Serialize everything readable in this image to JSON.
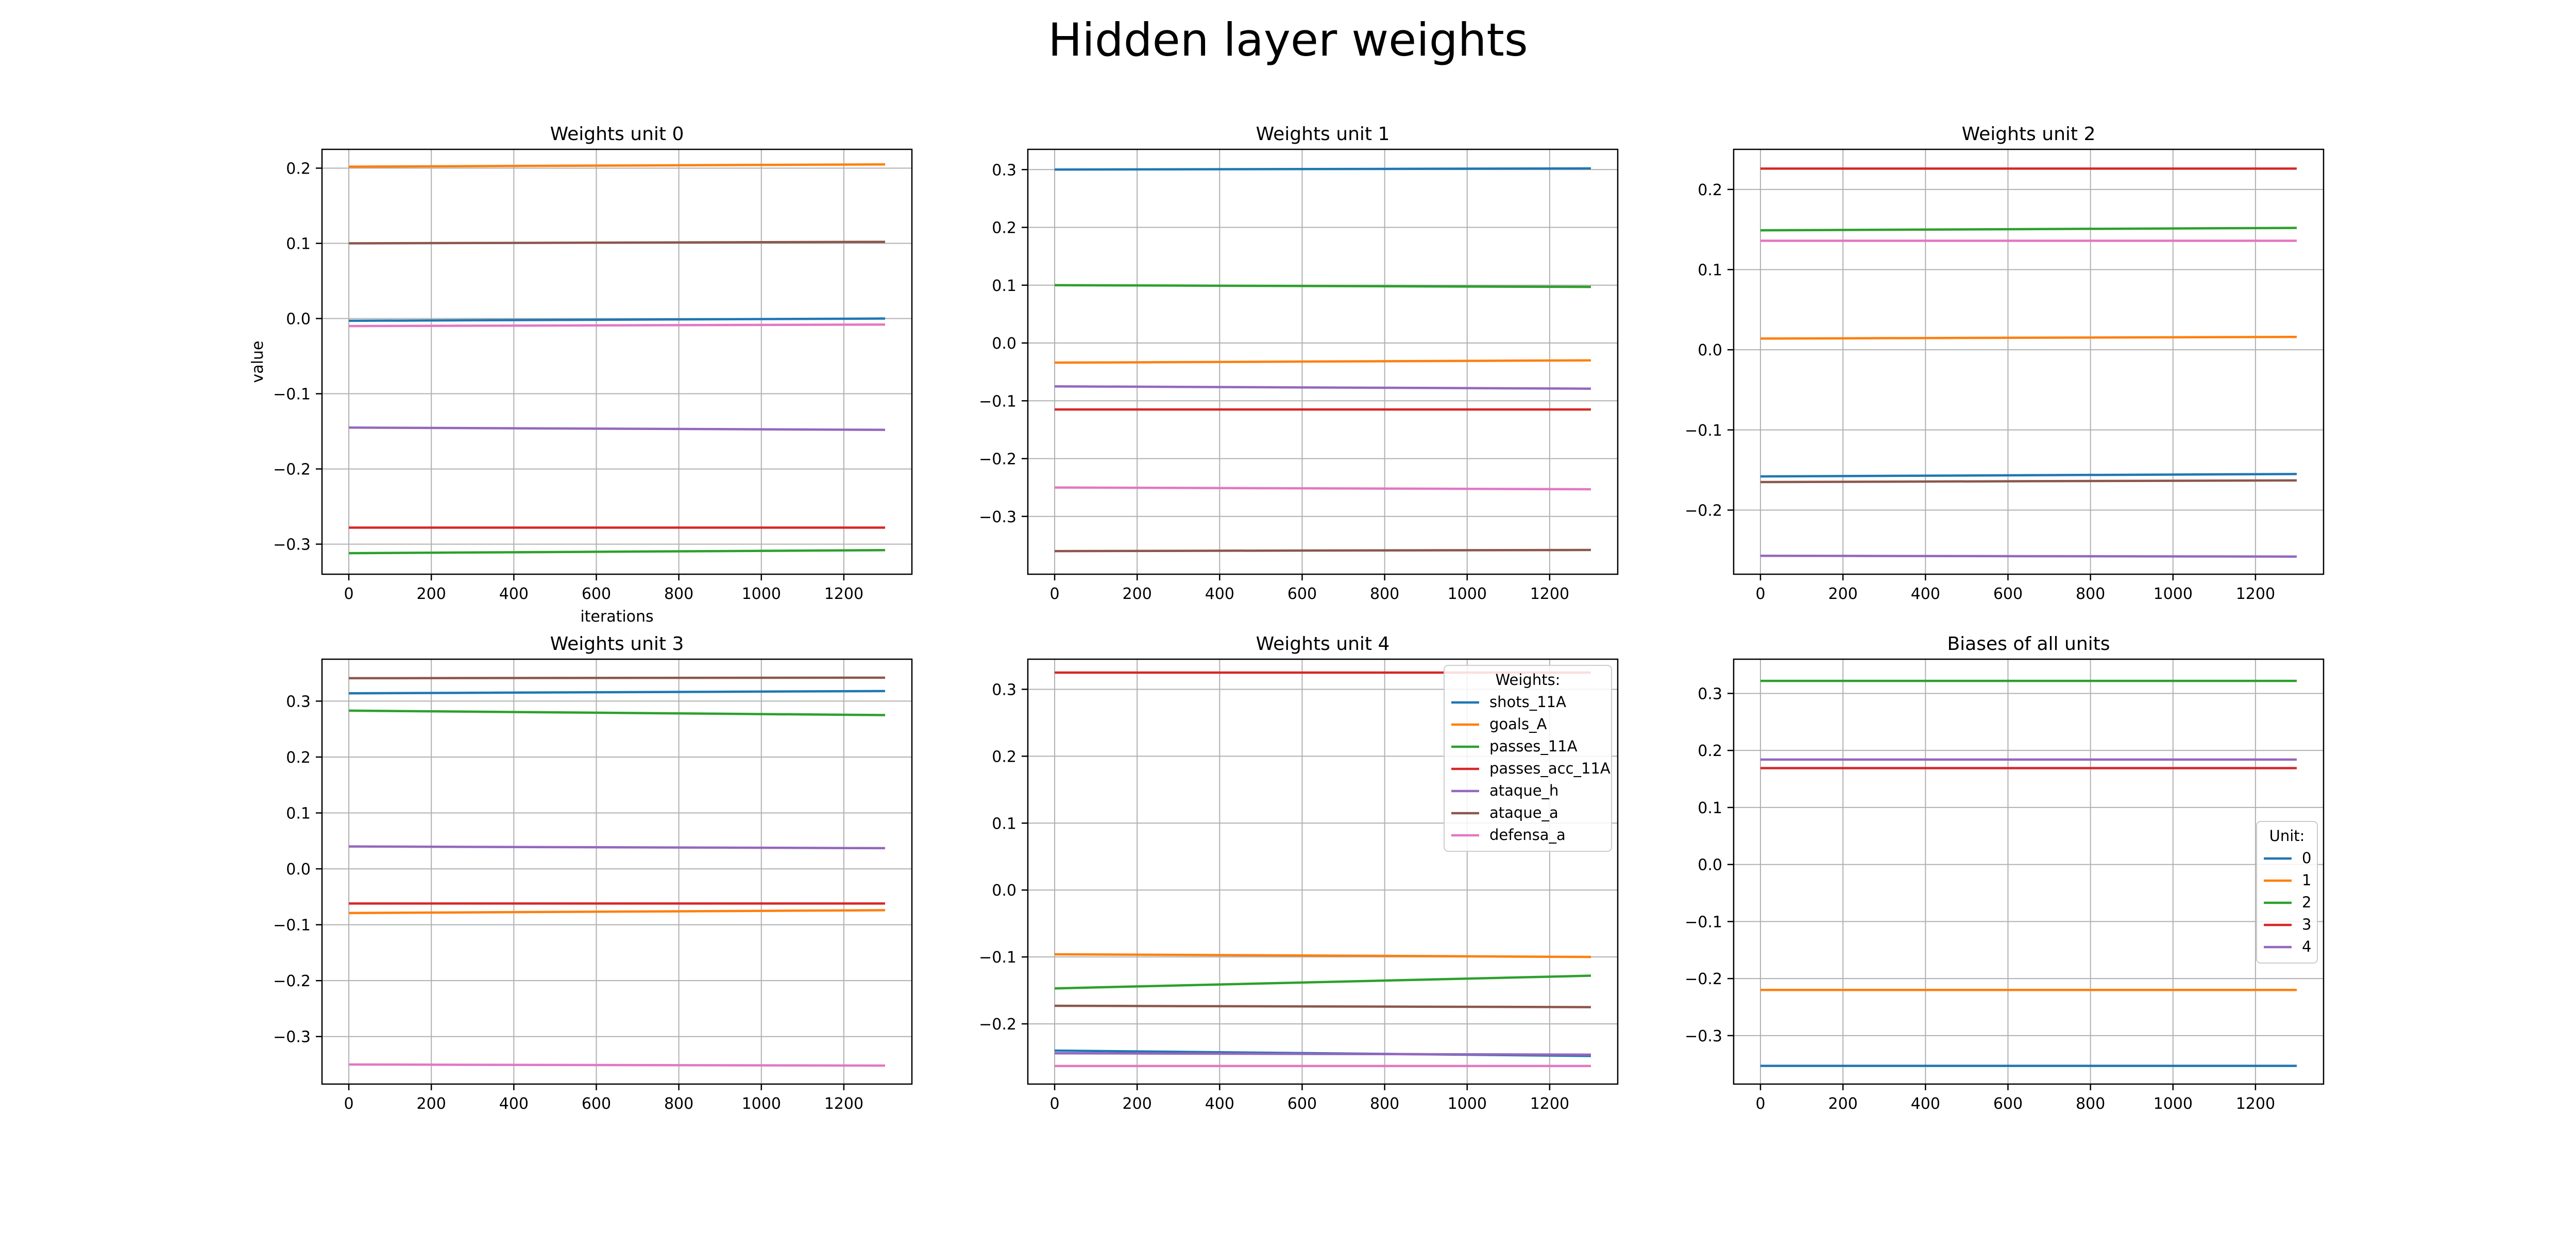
{
  "figure": {
    "title": "Hidden layer weights"
  },
  "colors": {
    "blue": "#1f77b4",
    "orange": "#ff7f0e",
    "green": "#2ca02c",
    "red": "#d62728",
    "purple": "#9467bd",
    "brown": "#8c564b",
    "pink": "#e377c2",
    "grid": "#b0b0b0",
    "axes": "#000000"
  },
  "chart_data": [
    {
      "type": "line",
      "title": "Weights unit 0",
      "xlabel": "iterations",
      "ylabel": "value",
      "xlim": [
        -65,
        1365
      ],
      "ylim": [
        -0.34,
        0.225
      ],
      "xticks": [
        0,
        200,
        400,
        600,
        800,
        1000,
        1200
      ],
      "xtick_labels": [
        "0",
        "200",
        "400",
        "600",
        "800",
        "1000",
        "1200"
      ],
      "yticks": [
        -0.3,
        -0.2,
        -0.1,
        0.0,
        0.1,
        0.2
      ],
      "ytick_labels": [
        "−0.3",
        "−0.2",
        "−0.1",
        "0.0",
        "0.1",
        "0.2"
      ],
      "grid": true,
      "x": [
        0,
        1300
      ],
      "series": [
        {
          "name": "shots_11A",
          "color": "#1f77b4",
          "values": [
            -0.003,
            0.0
          ]
        },
        {
          "name": "goals_A",
          "color": "#ff7f0e",
          "values": [
            0.202,
            0.205
          ]
        },
        {
          "name": "passes_11A",
          "color": "#2ca02c",
          "values": [
            -0.312,
            -0.308
          ]
        },
        {
          "name": "passes_acc_11A",
          "color": "#d62728",
          "values": [
            -0.278,
            -0.278
          ]
        },
        {
          "name": "ataque_h",
          "color": "#9467bd",
          "values": [
            -0.145,
            -0.148
          ]
        },
        {
          "name": "ataque_a",
          "color": "#8c564b",
          "values": [
            0.1,
            0.102
          ]
        },
        {
          "name": "defensa_a",
          "color": "#e377c2",
          "values": [
            -0.01,
            -0.008
          ]
        }
      ]
    },
    {
      "type": "line",
      "title": "Weights unit 1",
      "xlabel": "",
      "ylabel": "",
      "xlim": [
        -65,
        1365
      ],
      "ylim": [
        -0.4,
        0.335
      ],
      "xticks": [
        0,
        200,
        400,
        600,
        800,
        1000,
        1200
      ],
      "xtick_labels": [
        "0",
        "200",
        "400",
        "600",
        "800",
        "1000",
        "1200"
      ],
      "yticks": [
        -0.3,
        -0.2,
        -0.1,
        0.0,
        0.1,
        0.2,
        0.3
      ],
      "ytick_labels": [
        "−0.3",
        "−0.2",
        "−0.1",
        "0.0",
        "0.1",
        "0.2",
        "0.3"
      ],
      "grid": true,
      "x": [
        0,
        1300
      ],
      "series": [
        {
          "name": "shots_11A",
          "color": "#1f77b4",
          "values": [
            0.3,
            0.302
          ]
        },
        {
          "name": "goals_A",
          "color": "#ff7f0e",
          "values": [
            -0.034,
            -0.03
          ]
        },
        {
          "name": "passes_11A",
          "color": "#2ca02c",
          "values": [
            0.1,
            0.097
          ]
        },
        {
          "name": "passes_acc_11A",
          "color": "#d62728",
          "values": [
            -0.115,
            -0.115
          ]
        },
        {
          "name": "ataque_h",
          "color": "#9467bd",
          "values": [
            -0.075,
            -0.079
          ]
        },
        {
          "name": "ataque_a",
          "color": "#8c564b",
          "values": [
            -0.36,
            -0.358
          ]
        },
        {
          "name": "defensa_a",
          "color": "#e377c2",
          "values": [
            -0.25,
            -0.253
          ]
        }
      ]
    },
    {
      "type": "line",
      "title": "Weights unit 2",
      "xlabel": "",
      "ylabel": "",
      "xlim": [
        -65,
        1365
      ],
      "ylim": [
        -0.28,
        0.25
      ],
      "xticks": [
        0,
        200,
        400,
        600,
        800,
        1000,
        1200
      ],
      "xtick_labels": [
        "0",
        "200",
        "400",
        "600",
        "800",
        "1000",
        "1200"
      ],
      "yticks": [
        -0.2,
        -0.1,
        0.0,
        0.1,
        0.2
      ],
      "ytick_labels": [
        "−0.2",
        "−0.1",
        "0.0",
        "0.1",
        "0.2"
      ],
      "grid": true,
      "x": [
        0,
        1300
      ],
      "series": [
        {
          "name": "shots_11A",
          "color": "#1f77b4",
          "values": [
            -0.158,
            -0.155
          ]
        },
        {
          "name": "goals_A",
          "color": "#ff7f0e",
          "values": [
            0.014,
            0.016
          ]
        },
        {
          "name": "passes_11A",
          "color": "#2ca02c",
          "values": [
            0.149,
            0.152
          ]
        },
        {
          "name": "passes_acc_11A",
          "color": "#d62728",
          "values": [
            0.226,
            0.226
          ]
        },
        {
          "name": "ataque_h",
          "color": "#9467bd",
          "values": [
            -0.257,
            -0.258
          ]
        },
        {
          "name": "ataque_a",
          "color": "#8c564b",
          "values": [
            -0.165,
            -0.163
          ]
        },
        {
          "name": "defensa_a",
          "color": "#e377c2",
          "values": [
            0.136,
            0.136
          ]
        }
      ]
    },
    {
      "type": "line",
      "title": "Weights unit 3",
      "xlabel": "",
      "ylabel": "",
      "xlim": [
        -65,
        1365
      ],
      "ylim": [
        -0.385,
        0.375
      ],
      "xticks": [
        0,
        200,
        400,
        600,
        800,
        1000,
        1200
      ],
      "xtick_labels": [
        "0",
        "200",
        "400",
        "600",
        "800",
        "1000",
        "1200"
      ],
      "yticks": [
        -0.3,
        -0.2,
        -0.1,
        0.0,
        0.1,
        0.2,
        0.3
      ],
      "ytick_labels": [
        "−0.3",
        "−0.2",
        "−0.1",
        "0.0",
        "0.1",
        "0.2",
        "0.3"
      ],
      "grid": true,
      "x": [
        0,
        1300
      ],
      "series": [
        {
          "name": "shots_11A",
          "color": "#1f77b4",
          "values": [
            0.314,
            0.318
          ]
        },
        {
          "name": "goals_A",
          "color": "#ff7f0e",
          "values": [
            -0.079,
            -0.074
          ]
        },
        {
          "name": "passes_11A",
          "color": "#2ca02c",
          "values": [
            0.283,
            0.275
          ]
        },
        {
          "name": "passes_acc_11A",
          "color": "#d62728",
          "values": [
            -0.062,
            -0.062
          ]
        },
        {
          "name": "ataque_h",
          "color": "#9467bd",
          "values": [
            0.04,
            0.037
          ]
        },
        {
          "name": "ataque_a",
          "color": "#8c564b",
          "values": [
            0.341,
            0.342
          ]
        },
        {
          "name": "defensa_a",
          "color": "#e377c2",
          "values": [
            -0.35,
            -0.352
          ]
        }
      ]
    },
    {
      "type": "line",
      "title": "Weights unit 4",
      "xlabel": "",
      "ylabel": "",
      "xlim": [
        -65,
        1365
      ],
      "ylim": [
        -0.29,
        0.345
      ],
      "xticks": [
        0,
        200,
        400,
        600,
        800,
        1000,
        1200
      ],
      "xtick_labels": [
        "0",
        "200",
        "400",
        "600",
        "800",
        "1000",
        "1200"
      ],
      "yticks": [
        -0.2,
        -0.1,
        0.0,
        0.1,
        0.2,
        0.3
      ],
      "ytick_labels": [
        "−0.2",
        "−0.1",
        "0.0",
        "0.1",
        "0.2",
        "0.3"
      ],
      "grid": true,
      "x": [
        0,
        1300
      ],
      "legend": {
        "title": "Weights:",
        "placement": "upper right"
      },
      "series": [
        {
          "name": "shots_11A",
          "color": "#1f77b4",
          "values": [
            -0.24,
            -0.248
          ]
        },
        {
          "name": "goals_A",
          "color": "#ff7f0e",
          "values": [
            -0.096,
            -0.1
          ]
        },
        {
          "name": "passes_11A",
          "color": "#2ca02c",
          "values": [
            -0.147,
            -0.128
          ]
        },
        {
          "name": "passes_acc_11A",
          "color": "#d62728",
          "values": [
            0.325,
            0.325
          ]
        },
        {
          "name": "ataque_h",
          "color": "#9467bd",
          "values": [
            -0.244,
            -0.246
          ]
        },
        {
          "name": "ataque_a",
          "color": "#8c564b",
          "values": [
            -0.173,
            -0.175
          ]
        },
        {
          "name": "defensa_a",
          "color": "#e377c2",
          "values": [
            -0.263,
            -0.263
          ]
        }
      ]
    },
    {
      "type": "line",
      "title": "Biases of all units",
      "xlabel": "",
      "ylabel": "",
      "xlim": [
        -65,
        1365
      ],
      "ylim": [
        -0.385,
        0.36
      ],
      "xticks": [
        0,
        200,
        400,
        600,
        800,
        1000,
        1200
      ],
      "xtick_labels": [
        "0",
        "200",
        "400",
        "600",
        "800",
        "1000",
        "1200"
      ],
      "yticks": [
        -0.3,
        -0.2,
        -0.1,
        0.0,
        0.1,
        0.2,
        0.3
      ],
      "ytick_labels": [
        "−0.3",
        "−0.2",
        "−0.1",
        "0.0",
        "0.1",
        "0.2",
        "0.3"
      ],
      "grid": true,
      "x": [
        0,
        1300
      ],
      "legend": {
        "title": "Unit:",
        "placement": "center right"
      },
      "series": [
        {
          "name": "0",
          "color": "#1f77b4",
          "values": [
            -0.353,
            -0.353
          ]
        },
        {
          "name": "1",
          "color": "#ff7f0e",
          "values": [
            -0.22,
            -0.22
          ]
        },
        {
          "name": "2",
          "color": "#2ca02c",
          "values": [
            0.322,
            0.322
          ]
        },
        {
          "name": "3",
          "color": "#d62728",
          "values": [
            0.169,
            0.169
          ]
        },
        {
          "name": "4",
          "color": "#9467bd",
          "values": [
            0.184,
            0.184
          ]
        }
      ]
    }
  ]
}
